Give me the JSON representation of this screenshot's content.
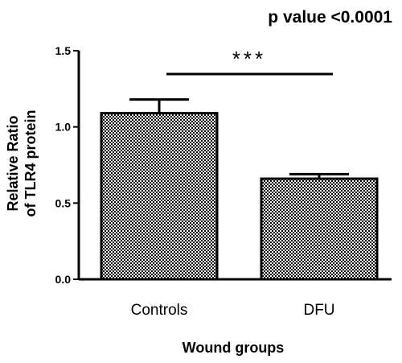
{
  "annotation": "p value <0.0001",
  "chart_data": {
    "type": "bar",
    "categories": [
      "Controls",
      "DFU"
    ],
    "values": [
      1.09,
      0.66
    ],
    "errors": [
      0.09,
      0.03
    ],
    "ylim": [
      0,
      1.5
    ],
    "yticks": [
      "0.0",
      "0.5",
      "1.0",
      "1.5"
    ],
    "ylabel_line1": "Relative Ratio",
    "ylabel_line2": "of TLR4 protein",
    "xlabel": "Wound groups",
    "significance": "***",
    "pattern": "checkered",
    "colors": {
      "bar_fill": "#000000",
      "bar_bg": "#ffffff",
      "axis": "#000000"
    },
    "grid": false,
    "legend": "none"
  }
}
